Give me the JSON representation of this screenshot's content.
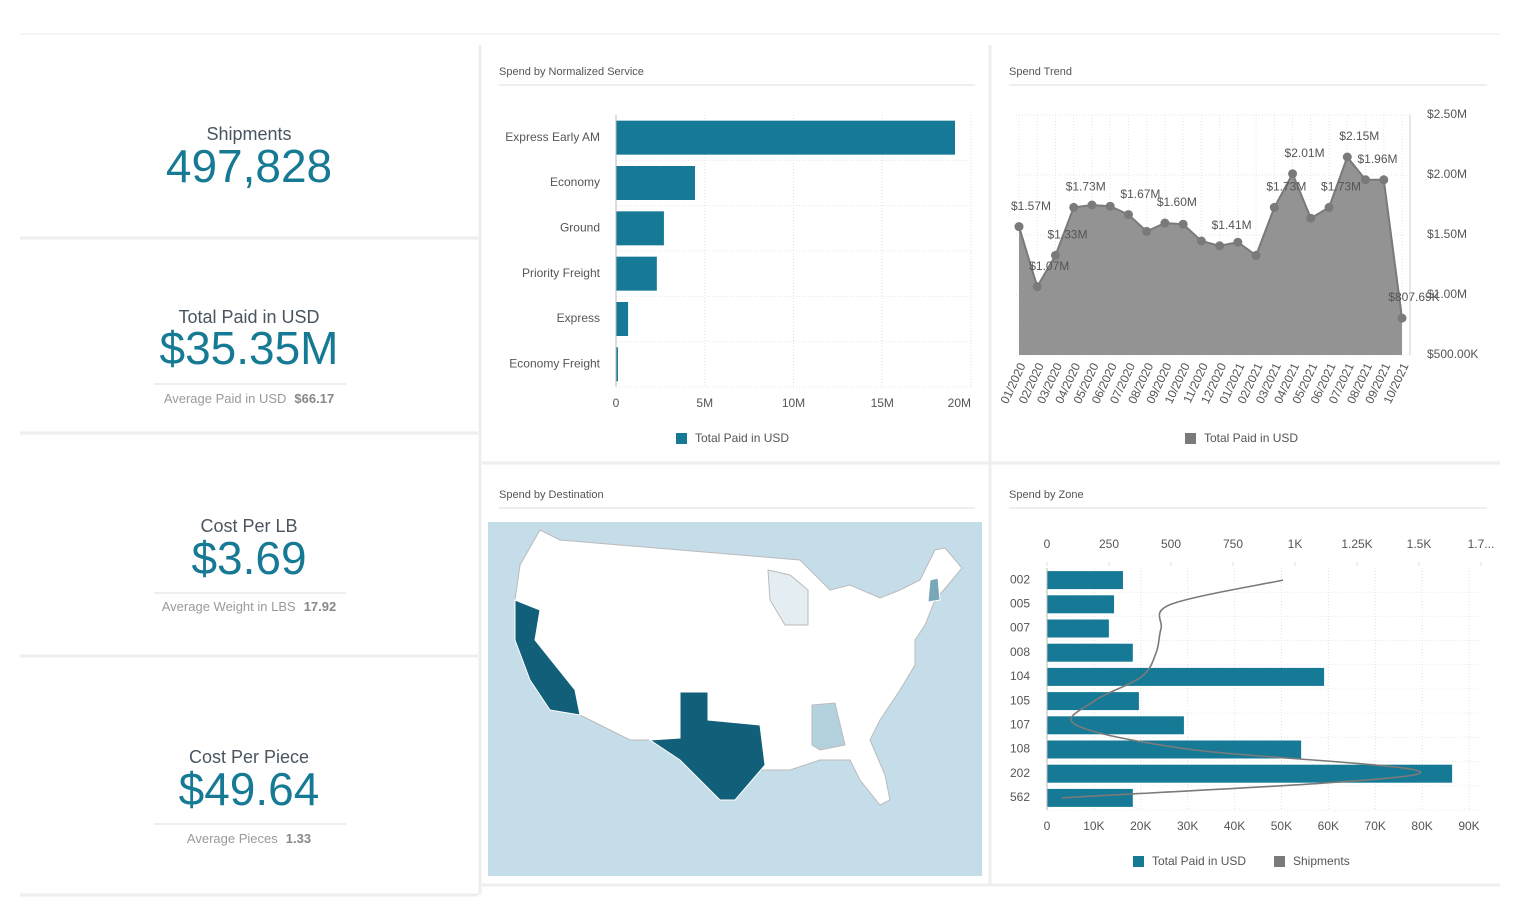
{
  "kpis": [
    {
      "title": "Shipments",
      "value": "497,828"
    },
    {
      "title": "Total Paid in USD",
      "value": "$35.35M",
      "sub_label": "Average Paid in USD",
      "sub_value": "$66.17"
    },
    {
      "title": "Cost Per LB",
      "value": "$3.69",
      "sub_label": "Average Weight in LBS",
      "sub_value": "17.92"
    },
    {
      "title": "Cost Per Piece",
      "value": "$49.64",
      "sub_label": "Average Pieces",
      "sub_value": "1.33"
    }
  ],
  "map": {
    "title": "Spend by Destination"
  },
  "chart_data": [
    {
      "type": "hbar",
      "title": "Spend by Normalized Service",
      "categories": [
        "Express Early AM",
        "Economy",
        "Ground",
        "Priority Freight",
        "Express",
        "Economy Freight"
      ],
      "series": [
        {
          "name": "Total Paid in USD",
          "color": "#167a97",
          "values": [
            19100000,
            4450000,
            2700000,
            2300000,
            680000,
            110000
          ]
        }
      ],
      "xlim": [
        0,
        20000000
      ],
      "xticks": [
        0,
        {
          "value": 5000000,
          "label": "5M"
        },
        {
          "value": 10000000,
          "label": "10M"
        },
        {
          "value": 15000000,
          "label": "15M"
        },
        {
          "value": 20000000,
          "label": "20M"
        }
      ],
      "grid": true
    },
    {
      "type": "area",
      "title": "Spend Trend",
      "x": [
        "01/2020",
        "02/2020",
        "03/2020",
        "04/2020",
        "05/2020",
        "06/2020",
        "07/2020",
        "08/2020",
        "09/2020",
        "10/2020",
        "11/2020",
        "12/2020",
        "01/2021",
        "02/2021",
        "03/2021",
        "04/2021",
        "05/2021",
        "06/2021",
        "07/2021",
        "08/2021",
        "09/2021",
        "10/2021"
      ],
      "series": [
        {
          "name": "Total Paid in USD",
          "color": "#939393",
          "values": [
            1570000,
            1070000,
            1330000,
            1730000,
            1750000,
            1740000,
            1670000,
            1530000,
            1600000,
            1590000,
            1450000,
            1410000,
            1440000,
            1330000,
            1730000,
            2010000,
            1640000,
            1730000,
            2150000,
            1960000,
            1960000,
            807690
          ],
          "value_labels": [
            "$1.57M",
            "$1.07M",
            "$1.33M",
            "$1.73M",
            null,
            null,
            "$1.67M",
            null,
            "$1.60M",
            null,
            null,
            "$1.41M",
            null,
            null,
            "$1.73M",
            "$2.01M",
            null,
            "$1.73M",
            "$2.15M",
            "$1.96M",
            null,
            "$807.69K"
          ]
        }
      ],
      "ylim": [
        500000,
        2500000
      ],
      "yticks": [
        {
          "value": 500000,
          "label": "$500.00K"
        },
        {
          "value": 1000000,
          "label": "$1.00M"
        },
        {
          "value": 1500000,
          "label": "$1.50M"
        },
        {
          "value": 2000000,
          "label": "$2.00M"
        },
        {
          "value": 2500000,
          "label": "$2.50M"
        }
      ],
      "grid": true
    },
    {
      "type": "hbar_line",
      "title": "Spend by Zone",
      "categories": [
        "002",
        "005",
        "007",
        "008",
        "104",
        "105",
        "107",
        "108",
        "202",
        "562"
      ],
      "series": [
        {
          "name": "Total Paid in USD",
          "color": "#167a97",
          "values": [
            16200,
            14300,
            13200,
            18300,
            59100,
            19600,
            29200,
            54200,
            86400,
            18300
          ]
        },
        {
          "name": "Shipments",
          "color": "#7a7a7a",
          "axis": "x2",
          "values": [
            952,
            500,
            460,
            440,
            380,
            190,
            120,
            580,
            1500,
            60
          ]
        }
      ],
      "xlim": [
        0,
        90000
      ],
      "xticks": [
        0,
        {
          "value": 10000,
          "label": "10K"
        },
        {
          "value": 20000,
          "label": "20K"
        },
        {
          "value": 30000,
          "label": "30K"
        },
        {
          "value": 40000,
          "label": "40K"
        },
        {
          "value": 50000,
          "label": "50K"
        },
        {
          "value": 60000,
          "label": "60K"
        },
        {
          "value": 70000,
          "label": "70K"
        },
        {
          "value": 80000,
          "label": "80K"
        },
        {
          "value": 90000,
          "label": "90K"
        }
      ],
      "x2lim": [
        0,
        1750
      ],
      "x2ticks": [
        0,
        250,
        500,
        750,
        {
          "value": 1000,
          "label": "1K"
        },
        {
          "value": 1250,
          "label": "1.25K"
        },
        {
          "value": 1500,
          "label": "1.5K"
        },
        {
          "value": 1750,
          "label": "1.7..."
        }
      ],
      "grid": true
    }
  ]
}
